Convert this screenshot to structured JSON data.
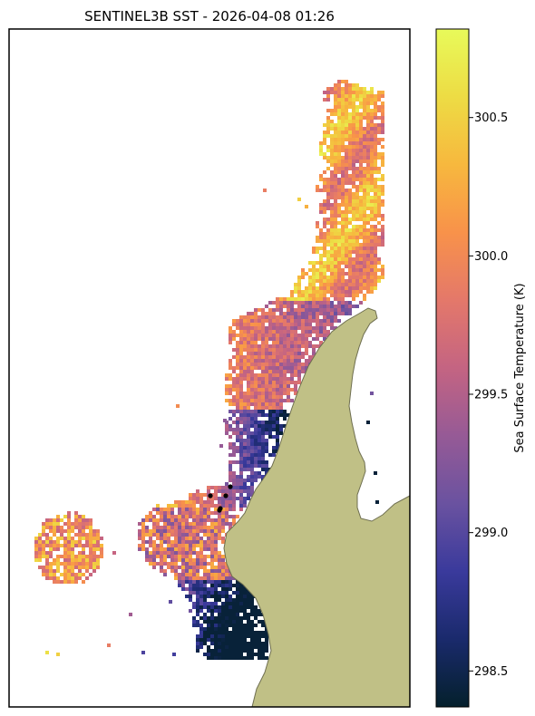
{
  "chart_data": {
    "type": "heatmap",
    "title": "SENTINEL3B SST - 2026-04-08 01:26",
    "colorbar": {
      "label": "Sea Surface Temperature (K)",
      "range": [
        298.37,
        300.82
      ],
      "ticks": [
        298.5,
        299.0,
        299.5,
        300.0,
        300.5
      ],
      "tick_labels": [
        "298.5",
        "299.0",
        "299.5",
        "300.0",
        "300.5"
      ],
      "colormap": "thermal",
      "stops": [
        "#04202c",
        "#1a2a6c",
        "#3a3a9c",
        "#6a52a0",
        "#965a96",
        "#c46482",
        "#e4786a",
        "#f8924a",
        "#f7b83e",
        "#eddc44",
        "#e8fa5a"
      ]
    },
    "land_color": "#c0c086",
    "coast_color": "#6e6e50",
    "marker_color": "#000000",
    "markers": 5,
    "grid": false,
    "legend": "none"
  }
}
